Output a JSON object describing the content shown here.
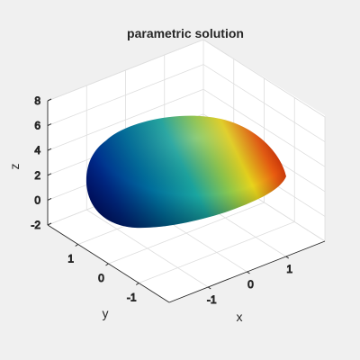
{
  "chart_data": {
    "type": "surface",
    "title": "parametric solution",
    "xlabel": "x",
    "ylabel": "y",
    "zlabel": "z",
    "xlim": [
      -2,
      2
    ],
    "ylim": [
      -2,
      2
    ],
    "zlim": [
      -2,
      8
    ],
    "xticks": [
      -1,
      0,
      1
    ],
    "yticks": [
      -1,
      0,
      1
    ],
    "zticks": [
      -2,
      0,
      2,
      4,
      6,
      8
    ],
    "xtick_labels": [
      "-1",
      "0",
      "1"
    ],
    "ytick_labels": [
      "-1",
      "0",
      "1"
    ],
    "ztick_labels": [
      "-2",
      "0",
      "2",
      "4",
      "6",
      "8"
    ],
    "grid": true,
    "colormap": "jet",
    "surface": {
      "description_shape": "closed egg-shaped surface elongated along the x/y diagonal",
      "x_range": [
        -1.4,
        1.6
      ],
      "y_range": [
        -1.6,
        1.3
      ],
      "z_range": [
        -1.1,
        6.3
      ]
    }
  },
  "colors": {
    "figure_background": "#f0f0f0",
    "axes_background": "#ffffff",
    "grid": "#dedede",
    "axis_line": "#262626"
  }
}
